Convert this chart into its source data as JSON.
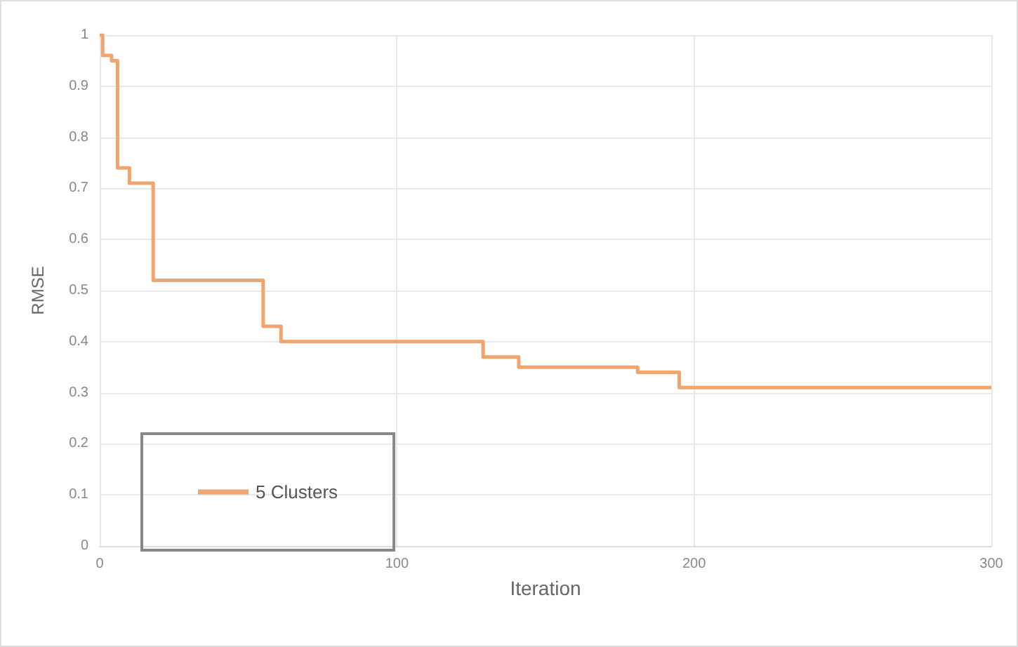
{
  "chart_data": {
    "type": "step",
    "xlabel": "Iteration",
    "ylabel": "RMSE",
    "series": [
      {
        "name": "5 Clusters",
        "color": "#f0a46e",
        "x": [
          0,
          1,
          4,
          6,
          10,
          18,
          55,
          61,
          129,
          141,
          181,
          195,
          300
        ],
        "values": [
          1,
          0.96,
          0.95,
          0.74,
          0.71,
          0.52,
          0.43,
          0.4,
          0.37,
          0.35,
          0.34,
          0.31,
          0.31
        ]
      }
    ],
    "xlim": [
      0,
      300
    ],
    "xticks": [
      0,
      100,
      200,
      300
    ],
    "ylim": [
      0,
      1
    ],
    "yticks": [
      0,
      0.1,
      0.2,
      0.3,
      0.4,
      0.5,
      0.6,
      0.7,
      0.8,
      0.9,
      1
    ],
    "grid": true,
    "legend": "bottom left",
    "marker": "none",
    "line_style": "solid"
  }
}
